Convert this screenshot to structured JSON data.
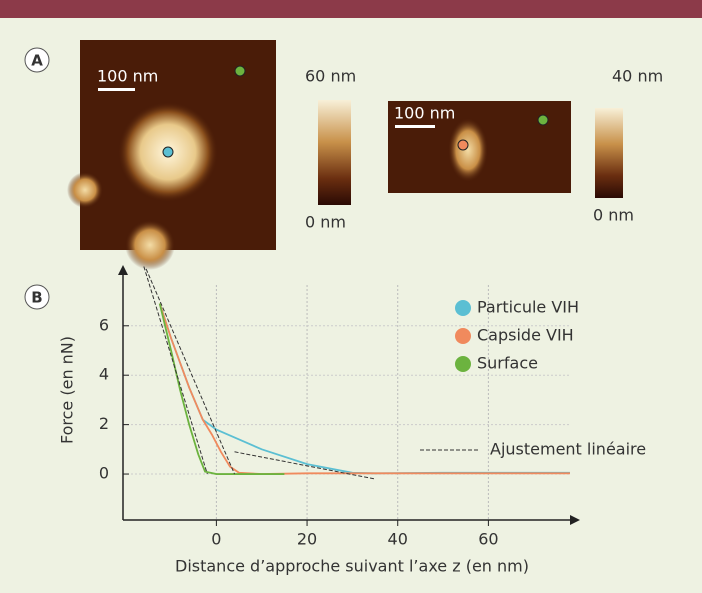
{
  "panels": {
    "a": {
      "label": "A",
      "images": [
        {
          "scale_bar": "100 nm",
          "colorbar_max": "60 nm",
          "colorbar_min": "0 nm"
        },
        {
          "scale_bar": "100 nm",
          "colorbar_max": "40 nm",
          "colorbar_min": "0 nm"
        }
      ]
    },
    "b": {
      "label": "B"
    }
  },
  "chart_data": {
    "type": "line",
    "x_label": "Distance d’approche suivant l’axe z (en nm)",
    "y_label": "Force (en nN)",
    "xlim": [
      -20.6,
      78
    ],
    "ylim": [
      -1.86,
      8.46
    ],
    "xticks": [
      0,
      20,
      40,
      60
    ],
    "yticks": [
      0,
      2,
      4,
      6
    ],
    "grid": true,
    "series": [
      {
        "name": "Particule VIH",
        "color": "#5bbfd3",
        "x": [
          -12.5,
          -10,
          -6,
          -3,
          0,
          5,
          10,
          20,
          30,
          35,
          50,
          78
        ],
        "values": [
          6.9,
          5.5,
          3.5,
          2.2,
          1.8,
          1.4,
          1.0,
          0.4,
          0.05,
          0.03,
          0.05,
          0.05
        ]
      },
      {
        "name": "Capside VIH",
        "color": "#f08a5d",
        "x": [
          -12.5,
          -10,
          -6,
          -3,
          -1,
          1,
          3,
          5,
          10,
          20,
          78
        ],
        "values": [
          6.9,
          5.5,
          3.5,
          2.2,
          1.6,
          0.9,
          0.3,
          0.05,
          0,
          0.03,
          0.03
        ]
      },
      {
        "name": "Surface",
        "color": "#6cb33f",
        "x": [
          -12.5,
          -10,
          -8,
          -6,
          -4,
          -2.5,
          0,
          15
        ],
        "values": [
          6.9,
          5.0,
          3.4,
          2.0,
          0.8,
          0.1,
          0,
          0
        ]
      }
    ],
    "fit": {
      "name": "Ajustement linéaire",
      "color": "#333333",
      "lines": [
        {
          "x": [
            -16,
            -2
          ],
          "values": [
            8.4,
            0
          ]
        },
        {
          "x": [
            -15.5,
            4
          ],
          "values": [
            8.3,
            0
          ]
        },
        {
          "x": [
            4,
            35
          ],
          "values": [
            0.9,
            -0.2
          ]
        }
      ]
    }
  }
}
